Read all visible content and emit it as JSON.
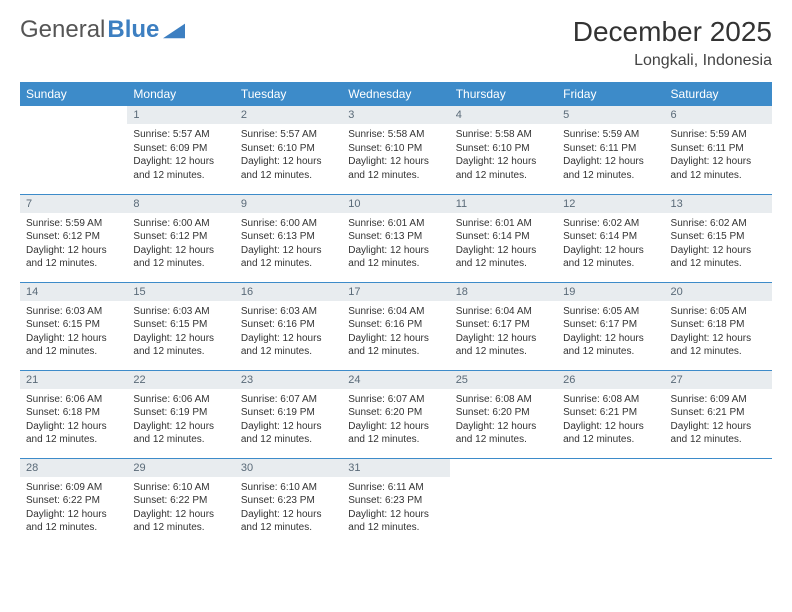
{
  "brand": {
    "text1": "General",
    "text2": "Blue"
  },
  "title": {
    "month": "December 2025",
    "location": "Longkali, Indonesia"
  },
  "colors": {
    "header_bg": "#3d8bc9",
    "header_text": "#ffffff",
    "daynum_bg": "#e8ecef",
    "daynum_text": "#5a6a78",
    "rule": "#3d8bc9",
    "body_text": "#333333",
    "brand_gray": "#555555",
    "brand_blue": "#3d7fc1",
    "page_bg": "#ffffff"
  },
  "typography": {
    "title_fontsize": 28,
    "location_fontsize": 16,
    "dayheader_fontsize": 12,
    "daynum_fontsize": 11,
    "body_fontsize": 10
  },
  "layout": {
    "columns": 7,
    "rows": 5,
    "start_day_index": 1
  },
  "day_headers": [
    "Sunday",
    "Monday",
    "Tuesday",
    "Wednesday",
    "Thursday",
    "Friday",
    "Saturday"
  ],
  "labels": {
    "sunrise": "Sunrise:",
    "sunset": "Sunset:",
    "daylight": "Daylight:"
  },
  "days": [
    {
      "n": 1,
      "sunrise": "5:57 AM",
      "sunset": "6:09 PM",
      "daylight": "12 hours and 12 minutes."
    },
    {
      "n": 2,
      "sunrise": "5:57 AM",
      "sunset": "6:10 PM",
      "daylight": "12 hours and 12 minutes."
    },
    {
      "n": 3,
      "sunrise": "5:58 AM",
      "sunset": "6:10 PM",
      "daylight": "12 hours and 12 minutes."
    },
    {
      "n": 4,
      "sunrise": "5:58 AM",
      "sunset": "6:10 PM",
      "daylight": "12 hours and 12 minutes."
    },
    {
      "n": 5,
      "sunrise": "5:59 AM",
      "sunset": "6:11 PM",
      "daylight": "12 hours and 12 minutes."
    },
    {
      "n": 6,
      "sunrise": "5:59 AM",
      "sunset": "6:11 PM",
      "daylight": "12 hours and 12 minutes."
    },
    {
      "n": 7,
      "sunrise": "5:59 AM",
      "sunset": "6:12 PM",
      "daylight": "12 hours and 12 minutes."
    },
    {
      "n": 8,
      "sunrise": "6:00 AM",
      "sunset": "6:12 PM",
      "daylight": "12 hours and 12 minutes."
    },
    {
      "n": 9,
      "sunrise": "6:00 AM",
      "sunset": "6:13 PM",
      "daylight": "12 hours and 12 minutes."
    },
    {
      "n": 10,
      "sunrise": "6:01 AM",
      "sunset": "6:13 PM",
      "daylight": "12 hours and 12 minutes."
    },
    {
      "n": 11,
      "sunrise": "6:01 AM",
      "sunset": "6:14 PM",
      "daylight": "12 hours and 12 minutes."
    },
    {
      "n": 12,
      "sunrise": "6:02 AM",
      "sunset": "6:14 PM",
      "daylight": "12 hours and 12 minutes."
    },
    {
      "n": 13,
      "sunrise": "6:02 AM",
      "sunset": "6:15 PM",
      "daylight": "12 hours and 12 minutes."
    },
    {
      "n": 14,
      "sunrise": "6:03 AM",
      "sunset": "6:15 PM",
      "daylight": "12 hours and 12 minutes."
    },
    {
      "n": 15,
      "sunrise": "6:03 AM",
      "sunset": "6:15 PM",
      "daylight": "12 hours and 12 minutes."
    },
    {
      "n": 16,
      "sunrise": "6:03 AM",
      "sunset": "6:16 PM",
      "daylight": "12 hours and 12 minutes."
    },
    {
      "n": 17,
      "sunrise": "6:04 AM",
      "sunset": "6:16 PM",
      "daylight": "12 hours and 12 minutes."
    },
    {
      "n": 18,
      "sunrise": "6:04 AM",
      "sunset": "6:17 PM",
      "daylight": "12 hours and 12 minutes."
    },
    {
      "n": 19,
      "sunrise": "6:05 AM",
      "sunset": "6:17 PM",
      "daylight": "12 hours and 12 minutes."
    },
    {
      "n": 20,
      "sunrise": "6:05 AM",
      "sunset": "6:18 PM",
      "daylight": "12 hours and 12 minutes."
    },
    {
      "n": 21,
      "sunrise": "6:06 AM",
      "sunset": "6:18 PM",
      "daylight": "12 hours and 12 minutes."
    },
    {
      "n": 22,
      "sunrise": "6:06 AM",
      "sunset": "6:19 PM",
      "daylight": "12 hours and 12 minutes."
    },
    {
      "n": 23,
      "sunrise": "6:07 AM",
      "sunset": "6:19 PM",
      "daylight": "12 hours and 12 minutes."
    },
    {
      "n": 24,
      "sunrise": "6:07 AM",
      "sunset": "6:20 PM",
      "daylight": "12 hours and 12 minutes."
    },
    {
      "n": 25,
      "sunrise": "6:08 AM",
      "sunset": "6:20 PM",
      "daylight": "12 hours and 12 minutes."
    },
    {
      "n": 26,
      "sunrise": "6:08 AM",
      "sunset": "6:21 PM",
      "daylight": "12 hours and 12 minutes."
    },
    {
      "n": 27,
      "sunrise": "6:09 AM",
      "sunset": "6:21 PM",
      "daylight": "12 hours and 12 minutes."
    },
    {
      "n": 28,
      "sunrise": "6:09 AM",
      "sunset": "6:22 PM",
      "daylight": "12 hours and 12 minutes."
    },
    {
      "n": 29,
      "sunrise": "6:10 AM",
      "sunset": "6:22 PM",
      "daylight": "12 hours and 12 minutes."
    },
    {
      "n": 30,
      "sunrise": "6:10 AM",
      "sunset": "6:23 PM",
      "daylight": "12 hours and 12 minutes."
    },
    {
      "n": 31,
      "sunrise": "6:11 AM",
      "sunset": "6:23 PM",
      "daylight": "12 hours and 12 minutes."
    }
  ]
}
